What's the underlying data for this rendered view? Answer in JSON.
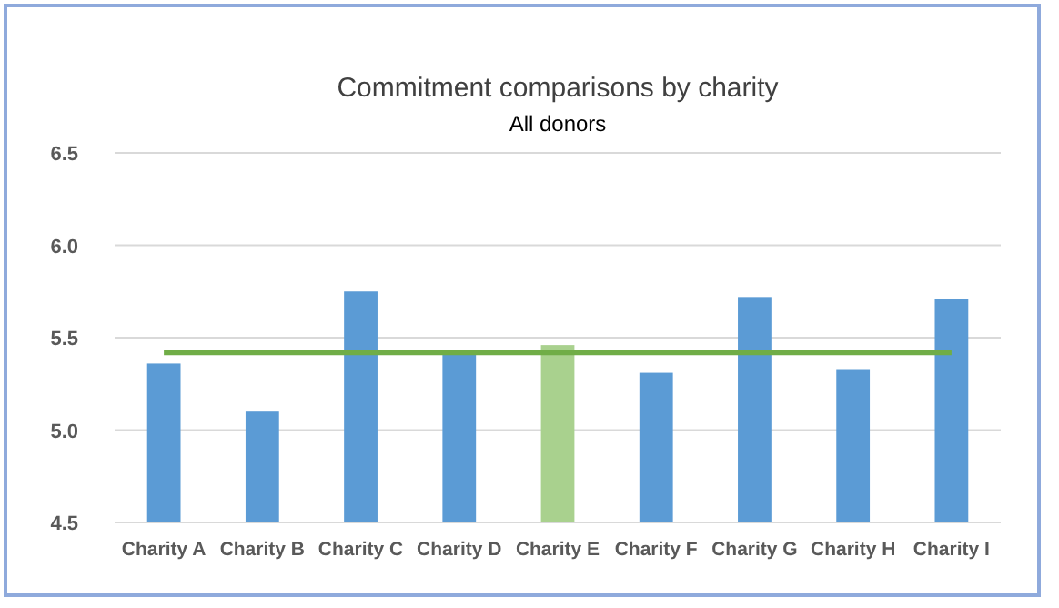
{
  "chart_data": {
    "type": "bar",
    "title": "Commitment comparisons by charity",
    "subtitle": "All donors",
    "categories": [
      "Charity A",
      "Charity B",
      "Charity C",
      "Charity D",
      "Charity E",
      "Charity F",
      "Charity G",
      "Charity H",
      "Charity I"
    ],
    "series": [
      {
        "values": [
          5.36,
          5.1,
          5.75,
          5.41,
          5.46,
          5.31,
          5.72,
          5.33,
          5.71
        ],
        "colors": [
          "#5b9bd5",
          "#5b9bd5",
          "#5b9bd5",
          "#5b9bd5",
          "#a9d18e",
          "#5b9bd5",
          "#5b9bd5",
          "#5b9bd5",
          "#5b9bd5"
        ]
      },
      {
        "type": "line",
        "color": "#70ad47",
        "values": [
          5.42,
          5.42,
          5.42,
          5.42,
          5.42,
          5.42,
          5.42,
          5.42,
          5.42
        ]
      }
    ],
    "ylim": [
      4.5,
      6.5
    ],
    "yticks": [
      {
        "value": 4.5,
        "label": "4.5"
      },
      {
        "value": 5,
        "label": "5.0"
      },
      {
        "value": 5.5,
        "label": "5.5"
      },
      {
        "value": 6,
        "label": "6.0"
      },
      {
        "value": 6.5,
        "label": "6.5"
      }
    ],
    "grid": "y"
  }
}
